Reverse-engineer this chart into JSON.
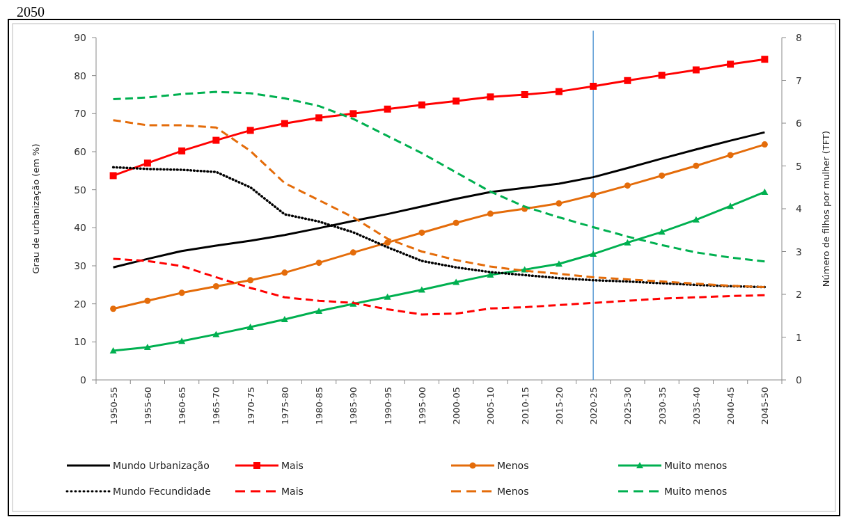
{
  "chart_data": {
    "type": "line",
    "title": "2050",
    "ylabel": "Grau de urbanização  (em %)",
    "y2label": "Número de filhos por mulher (TFT)",
    "categories": [
      "1950-55",
      "1955-60",
      "1960-65",
      "1965-70",
      "1970-75",
      "1975-80",
      "1980-85",
      "1985-90",
      "1990-95",
      "1995-00",
      "2000-05",
      "2005-10",
      "2010-15",
      "2015-20",
      "2020-25",
      "2025-30",
      "2030-35",
      "2035-40",
      "2040-45",
      "2045-50"
    ],
    "ylim": [
      0,
      90
    ],
    "yticks": [
      0,
      10,
      20,
      30,
      40,
      50,
      60,
      70,
      80,
      90
    ],
    "y2lim": [
      0,
      8
    ],
    "y2ticks": [
      0,
      1,
      2,
      3,
      4,
      5,
      6,
      7,
      8
    ],
    "grid": false,
    "legend": "bottom",
    "ref_lines": [
      {
        "axis": "x",
        "value": "2020-25",
        "color": "#5b9bd5"
      }
    ],
    "series": [
      {
        "name": "Mundo Urbanização",
        "color": "#000000",
        "marker": "none",
        "line_style": "solid",
        "values": [
          29.6,
          31.8,
          33.9,
          35.3,
          36.6,
          38.1,
          39.9,
          41.8,
          43.6,
          45.6,
          47.6,
          49.4,
          50.5,
          51.6,
          53.3,
          55.7,
          58.2,
          60.6,
          62.9,
          65.1
        ]
      },
      {
        "name": "Mais",
        "color": "#ff0000",
        "marker": "square",
        "line_style": "solid",
        "values": [
          53.7,
          57,
          60.2,
          63,
          65.6,
          67.4,
          68.9,
          70,
          71.2,
          72.3,
          73.3,
          74.4,
          75,
          75.8,
          77.2,
          78.7,
          80.1,
          81.5,
          83,
          84.3
        ]
      },
      {
        "name": "Menos",
        "color": "#e46c0a",
        "marker": "circle",
        "line_style": "solid",
        "values": [
          18.7,
          20.8,
          22.9,
          24.6,
          26.2,
          28.2,
          30.8,
          33.5,
          36.1,
          38.7,
          41.3,
          43.7,
          45,
          46.4,
          48.6,
          51.1,
          53.7,
          56.3,
          59.1,
          61.9
        ]
      },
      {
        "name": "Muito menos",
        "color": "#00b050",
        "marker": "triangle",
        "line_style": "solid",
        "values": [
          7.7,
          8.6,
          10.2,
          12,
          13.9,
          15.9,
          18.1,
          20,
          21.8,
          23.7,
          25.7,
          27.6,
          29,
          30.5,
          33.1,
          36.1,
          38.9,
          42.1,
          45.7,
          49.4
        ]
      },
      {
        "name": "Mundo Fecundidade",
        "color": "#000000",
        "marker": "none",
        "line_style": "dotted",
        "axis": "y2",
        "values": [
          4.97,
          4.93,
          4.91,
          4.86,
          4.5,
          3.87,
          3.7,
          3.45,
          3.1,
          2.78,
          2.63,
          2.52,
          2.45,
          2.38,
          2.33,
          2.3,
          2.26,
          2.22,
          2.19,
          2.17
        ]
      },
      {
        "name": "Mais",
        "color": "#ff0000",
        "marker": "none",
        "line_style": "dashed",
        "axis": "y2",
        "values": [
          2.83,
          2.78,
          2.66,
          2.4,
          2.15,
          1.93,
          1.85,
          1.8,
          1.65,
          1.53,
          1.55,
          1.67,
          1.7,
          1.75,
          1.8,
          1.85,
          1.9,
          1.93,
          1.96,
          1.98
        ]
      },
      {
        "name": "Menos",
        "color": "#e46c0a",
        "marker": "none",
        "line_style": "dashed",
        "axis": "y2",
        "values": [
          6.07,
          5.95,
          5.95,
          5.9,
          5.35,
          4.6,
          4.2,
          3.8,
          3.3,
          3.0,
          2.8,
          2.65,
          2.55,
          2.48,
          2.4,
          2.35,
          2.3,
          2.25,
          2.2,
          2.17
        ]
      },
      {
        "name": "Muito menos",
        "color": "#00b050",
        "marker": "none",
        "line_style": "dashed",
        "axis": "y2",
        "values": [
          6.56,
          6.6,
          6.68,
          6.73,
          6.7,
          6.58,
          6.4,
          6.1,
          5.7,
          5.3,
          4.85,
          4.4,
          4.05,
          3.8,
          3.57,
          3.35,
          3.15,
          2.98,
          2.86,
          2.77
        ]
      }
    ]
  }
}
